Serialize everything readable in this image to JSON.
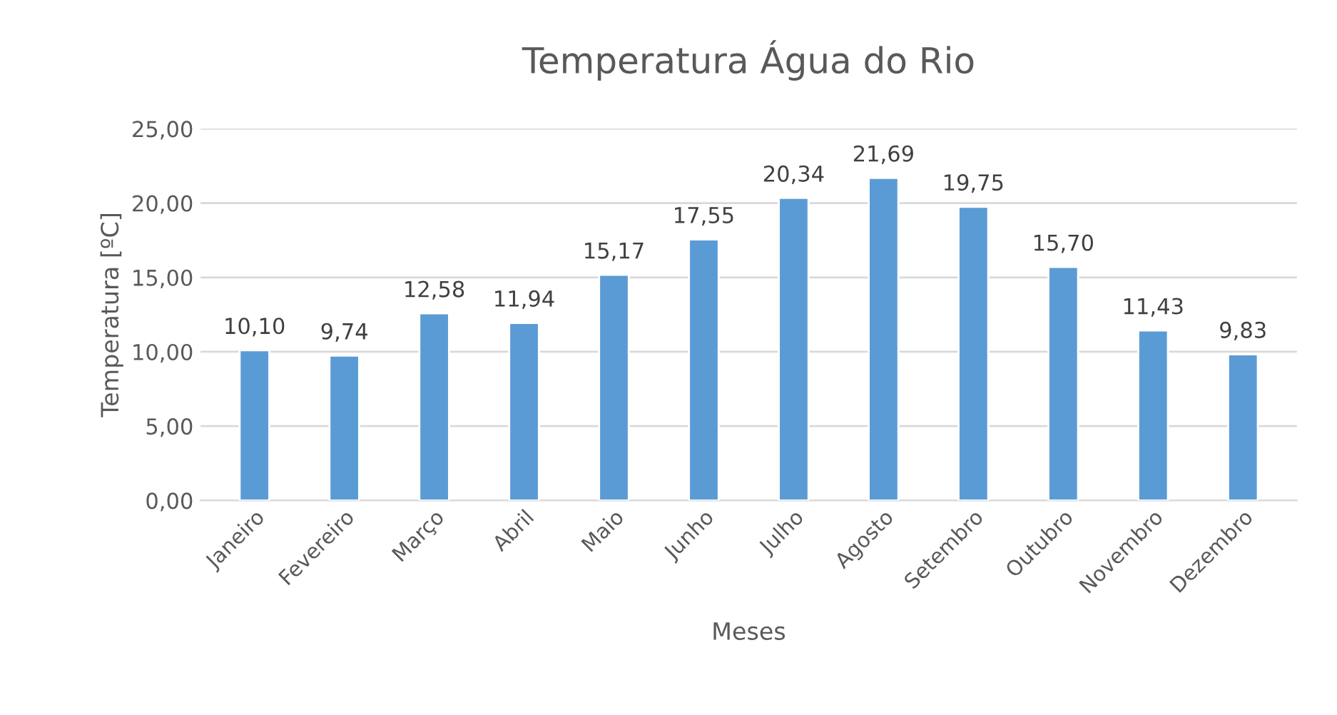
{
  "chart_data": {
    "type": "bar",
    "title": "Temperatura Água do Rio",
    "xlabel": "Meses",
    "ylabel": "Temperatura [ºC]",
    "categories": [
      "Janeiro",
      "Fevereiro",
      "Março",
      "Abril",
      "Maio",
      "Junho",
      "Julho",
      "Agosto",
      "Setembro",
      "Outubro",
      "Novembro",
      "Dezembro"
    ],
    "values": [
      10.1,
      9.74,
      12.58,
      11.94,
      15.17,
      17.55,
      20.34,
      21.69,
      19.75,
      15.7,
      11.43,
      9.83
    ],
    "value_labels": [
      "10,10",
      "9,74",
      "12,58",
      "11,94",
      "15,17",
      "17,55",
      "20,34",
      "21,69",
      "19,75",
      "15,70",
      "11,43",
      "9,83"
    ],
    "color": "#5b9bd5",
    "ylim": [
      0,
      25
    ],
    "yticks": [
      {
        "value": 0,
        "label": "0,00"
      },
      {
        "value": 5,
        "label": "5,00"
      },
      {
        "value": 10,
        "label": "10,00"
      },
      {
        "value": 15,
        "label": "15,00"
      },
      {
        "value": 20,
        "label": "20,00"
      },
      {
        "value": 25,
        "label": "25,00"
      }
    ],
    "grid": "y"
  }
}
